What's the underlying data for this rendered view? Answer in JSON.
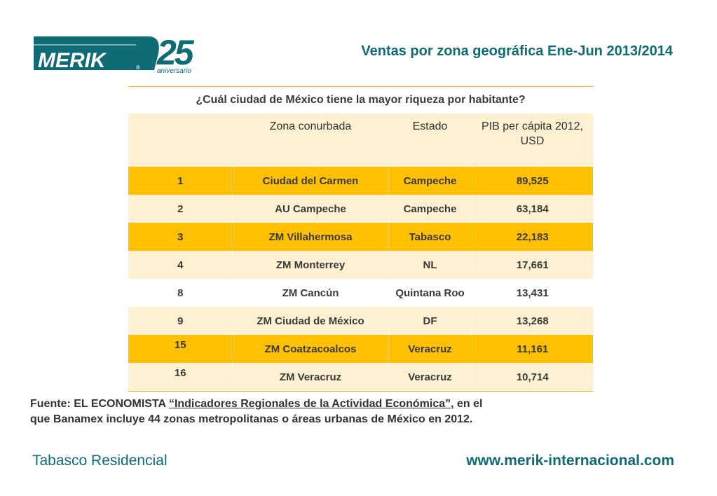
{
  "logo": {
    "brand": "MERIK",
    "registered": "®",
    "anniversary_number": "25",
    "anniversary_word": "aniversario",
    "color": "#0f6b74"
  },
  "title": "Ventas por zona geográfica Ene-Jun 2013/2014",
  "table": {
    "caption": "¿Cuál ciudad de México tiene la mayor riqueza por habitante?",
    "headers": [
      "",
      "Zona conurbada",
      "Estado",
      "PIB per cápita 2012, USD"
    ],
    "rows": [
      {
        "rank": "1",
        "zona": "Ciudad del Carmen",
        "estado": "Campeche",
        "pib": "89,525"
      },
      {
        "rank": "2",
        "zona": "AU Campeche",
        "estado": "Campeche",
        "pib": "63,184"
      },
      {
        "rank": "3",
        "zona": "ZM Villahermosa",
        "estado": "Tabasco",
        "pib": "22,183"
      },
      {
        "rank": "4",
        "zona": "ZM Monterrey",
        "estado": "NL",
        "pib": "17,661"
      },
      {
        "rank": "8",
        "zona": "ZM Cancún",
        "estado": "Quintana Roo",
        "pib": "13,431"
      },
      {
        "rank": "9",
        "zona": "ZM Ciudad de México",
        "estado": "DF",
        "pib": "13,268"
      },
      {
        "rank": "15",
        "zona": "ZM Coatzacoalcos",
        "estado": "Veracruz",
        "pib": "11,161"
      },
      {
        "rank": "16",
        "zona": "ZM Veracruz",
        "estado": "Veracruz",
        "pib": "10,714"
      }
    ],
    "colors": {
      "orange": "#ffc000",
      "cream": "#fdf1d1",
      "white": "#ffffff"
    }
  },
  "source": {
    "prefix": "Fuente: EL ECONOMISTA ",
    "link_text": "“Indicadores Regionales de la Actividad Económica”",
    "suffix": ", en el que Banamex incluye 44 zonas metropolitanas o áreas urbanas de México en 2012."
  },
  "footer": {
    "left": "Tabasco Residencial",
    "right": "www.merik-internacional.com"
  }
}
